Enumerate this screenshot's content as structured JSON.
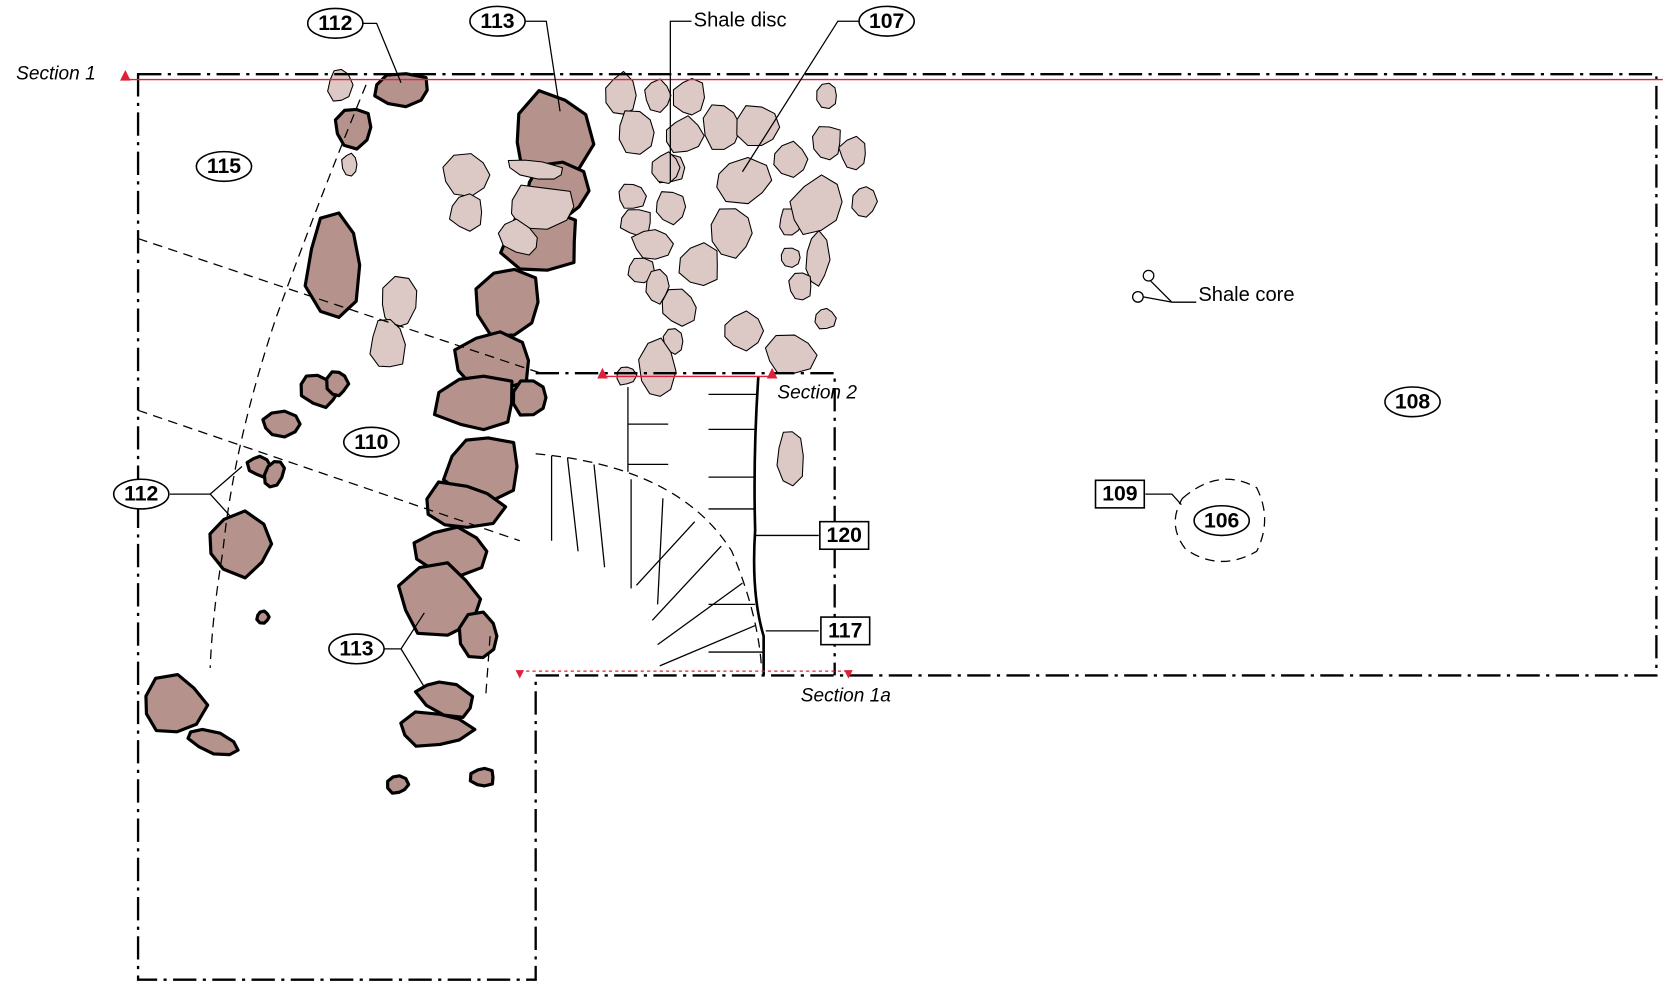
{
  "sections": [
    "Section 1",
    "Section 2",
    "Section 1a"
  ],
  "annotations": {
    "shale_disc": "Shale disc",
    "shale_core": "Shale core"
  },
  "contexts": {
    "c112a": "112",
    "c113a": "113",
    "c107": "107",
    "c115": "115",
    "c110": "110",
    "c112b": "112",
    "c113b": "113",
    "c108": "108",
    "c106": "106",
    "c109": "109",
    "c120": "120",
    "c117": "117"
  }
}
